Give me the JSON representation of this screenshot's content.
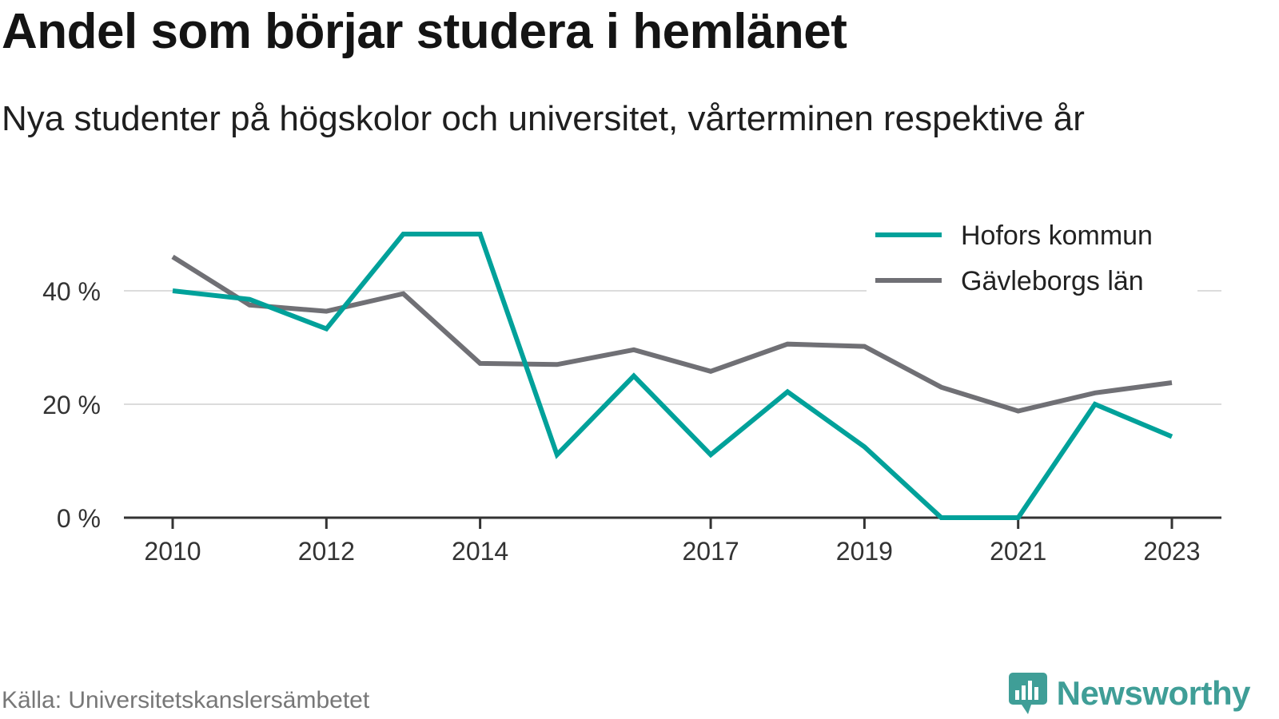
{
  "header": {
    "title": "Andel som börjar studera i hemlänet",
    "subtitle": "Nya studenter på högskolor och universitet, vårterminen respektive år"
  },
  "footer": {
    "source": "Källa: Universitetskanslersämbetet",
    "brand": "Newsworthy",
    "brand_icon": "bar-chart-speech-bubble-icon",
    "brand_color": "#3f9e97"
  },
  "chart_data": {
    "type": "line",
    "x": [
      2010,
      2011,
      2012,
      2013,
      2014,
      2015,
      2016,
      2017,
      2018,
      2019,
      2020,
      2021,
      2022,
      2023
    ],
    "x_tick_labels": [
      "2010",
      "2012",
      "2014",
      "2017",
      "2019",
      "2021",
      "2023"
    ],
    "y_tick_labels": [
      "0 %",
      "20 %",
      "40 %"
    ],
    "y_ticks": [
      0,
      20,
      40
    ],
    "ylim": [
      0,
      52
    ],
    "grid": true,
    "legend_position": "top-right",
    "series": [
      {
        "name": "Hofors kommun",
        "color": "#00a19a",
        "values": [
          40,
          38.5,
          33.3,
          50,
          50,
          11.1,
          25,
          11.1,
          22.2,
          12.5,
          0,
          0,
          20,
          14.3
        ]
      },
      {
        "name": "Gävleborgs län",
        "color": "#707075",
        "values": [
          46,
          37.5,
          36.4,
          39.5,
          27.2,
          27,
          29.6,
          25.8,
          30.6,
          30.2,
          23,
          18.8,
          22,
          23.8
        ]
      }
    ]
  }
}
